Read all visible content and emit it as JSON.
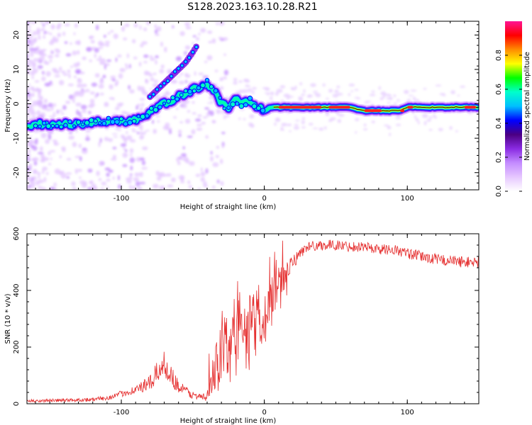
{
  "title": "S128.2023.163.10.28.R21",
  "colors": {
    "snr_line": "#e53030",
    "axis": "#000000",
    "colormap_stops": [
      "#ffffff",
      "#e6c8ff",
      "#c48cff",
      "#8a2be2",
      "#4b0082",
      "#0000ff",
      "#00bfff",
      "#00ffcc",
      "#00ff00",
      "#ffff00",
      "#ff8c00",
      "#ff0000",
      "#ff1493"
    ]
  },
  "chart_data": [
    {
      "type": "heatmap",
      "title": "",
      "xlabel": "Height of straight line (km)",
      "ylabel": "Frequency (Hz)",
      "xlim": [
        -166,
        150
      ],
      "ylim": [
        -25,
        24
      ],
      "xticks": [
        -100,
        0,
        100
      ],
      "yticks": [
        -20,
        -10,
        0,
        10,
        20
      ],
      "colorbar": {
        "label": "Normalized spectral amplitude",
        "range": [
          0,
          1
        ],
        "ticks": [
          "0.0",
          "0.2",
          "0.4",
          "0.6",
          "0.8"
        ]
      },
      "ridge": {
        "x": [
          -166,
          -150,
          -130,
          -110,
          -95,
          -85,
          -75,
          -65,
          -55,
          -45,
          -40,
          -35,
          -30,
          -25,
          -20,
          -15,
          -10,
          -5,
          0,
          5,
          10,
          30,
          50,
          60,
          70,
          80,
          85,
          90,
          95,
          100,
          110,
          120,
          130,
          140,
          150
        ],
        "y": [
          -6,
          -6,
          -6,
          -5,
          -5,
          -4,
          -1,
          1,
          3,
          5,
          6,
          4,
          0,
          -1,
          1,
          0,
          1,
          -1,
          -2,
          -1,
          -1,
          -1,
          -1,
          -1,
          -2,
          -2,
          -2,
          -2,
          -2,
          -1,
          -1,
          -1,
          -1,
          -1,
          -1
        ]
      },
      "upper_branch": {
        "x": [
          -80,
          -75,
          -70,
          -65,
          -60,
          -55,
          -50,
          -47
        ],
        "y": [
          2,
          4,
          6,
          8,
          10,
          12,
          15,
          17
        ]
      }
    },
    {
      "type": "line",
      "title": "",
      "xlabel": "Height of straight line (km)",
      "ylabel": "SNR (10 * v/v)",
      "xlim": [
        -166,
        150
      ],
      "ylim": [
        0,
        600
      ],
      "xticks": [
        -100,
        0,
        100
      ],
      "yticks": [
        0,
        200,
        400,
        600
      ],
      "envelope": {
        "x": [
          -166,
          -140,
          -120,
          -110,
          -100,
          -90,
          -80,
          -75,
          -70,
          -65,
          -60,
          -50,
          -40,
          -35,
          -30,
          -25,
          -20,
          -15,
          -10,
          -5,
          0,
          5,
          10,
          15,
          20,
          25,
          30,
          40,
          50,
          60,
          70,
          80,
          90,
          100,
          110,
          120,
          130,
          140,
          150
        ],
        "y": [
          10,
          12,
          15,
          20,
          35,
          50,
          70,
          110,
          140,
          100,
          60,
          30,
          20,
          120,
          180,
          200,
          250,
          240,
          250,
          300,
          320,
          360,
          430,
          450,
          500,
          530,
          555,
          560,
          560,
          555,
          555,
          545,
          545,
          530,
          520,
          510,
          505,
          500,
          500
        ]
      },
      "noise_amplitude": {
        "x": [
          -166,
          -110,
          -90,
          -70,
          -60,
          -45,
          -40,
          -30,
          -20,
          -10,
          0,
          10,
          20,
          30,
          150
        ],
        "y": [
          5,
          8,
          15,
          45,
          25,
          10,
          20,
          120,
          160,
          140,
          120,
          60,
          25,
          18,
          20
        ]
      }
    }
  ]
}
